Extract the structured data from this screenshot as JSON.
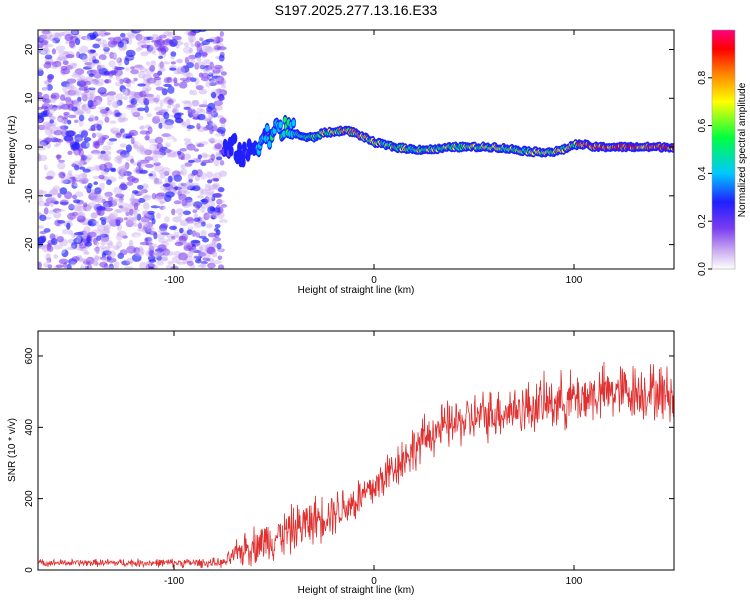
{
  "title": "S197.2025.277.13.16.E33",
  "chart_data": [
    {
      "type": "heatmap",
      "id": "spectrogram",
      "xlabel": "Height of straight line (km)",
      "ylabel": "Frequency (Hz)",
      "xlim": [
        -168,
        150
      ],
      "ylim": [
        -25,
        24
      ],
      "xticks": [
        -100,
        0,
        100
      ],
      "yticks": [
        -20,
        -10,
        0,
        10,
        20
      ],
      "colorbar": {
        "label": "Normalized spectral amplitude",
        "range": [
          0,
          1
        ],
        "ticks": [
          "0.0",
          "0.2",
          "0.4",
          "0.6",
          "0.8"
        ],
        "tick_values": [
          0,
          0.2,
          0.4,
          0.6,
          0.8
        ],
        "colors": [
          "#ffffff",
          "#c8a8f0",
          "#7a3cf0",
          "#2020ff",
          "#00c8ff",
          "#00ff40",
          "#ffff00",
          "#ff8000",
          "#ff0000",
          "#ff0080"
        ]
      },
      "noise_region_x": [
        -168,
        -75
      ],
      "ridge": {
        "x": [
          -75,
          -70,
          -65,
          -60,
          -55,
          -50,
          -45,
          -40,
          -35,
          -30,
          -25,
          -20,
          -15,
          -10,
          -5,
          0,
          5,
          10,
          20,
          30,
          40,
          50,
          60,
          70,
          80,
          90,
          95,
          100,
          105,
          110,
          120,
          130,
          140,
          150
        ],
        "freq": [
          -1,
          0,
          -2,
          0,
          2,
          3,
          4,
          3,
          2,
          2,
          3,
          3,
          3.5,
          3,
          2,
          1,
          0.5,
          0,
          -0.5,
          -0.5,
          0,
          0,
          0,
          -0.5,
          -1,
          -1,
          -0.5,
          0.5,
          0.5,
          0,
          0,
          0,
          0,
          0
        ],
        "amplitude": [
          0.35,
          0.4,
          0.35,
          0.4,
          0.5,
          0.55,
          0.6,
          0.55,
          0.6,
          0.65,
          0.7,
          0.75,
          0.85,
          0.8,
          0.75,
          0.7,
          0.7,
          0.75,
          0.65,
          0.7,
          0.7,
          0.75,
          0.7,
          0.65,
          0.7,
          0.75,
          0.7,
          0.8,
          0.9,
          0.95,
          0.95,
          0.95,
          0.95,
          0.95
        ]
      }
    },
    {
      "type": "line",
      "id": "snr",
      "xlabel": "Height of straight line (km)",
      "ylabel": "SNR (10 * v/v)",
      "xlim": [
        -168,
        150
      ],
      "ylim": [
        0,
        670
      ],
      "xticks": [
        -100,
        0,
        100
      ],
      "yticks": [
        0,
        200,
        400,
        600
      ],
      "color": "#e03030",
      "trend": {
        "x": [
          -168,
          -75,
          -65,
          -50,
          -30,
          -10,
          0,
          10,
          20,
          30,
          40,
          60,
          80,
          100,
          120,
          140,
          150
        ],
        "y": [
          20,
          20,
          60,
          90,
          140,
          190,
          230,
          290,
          340,
          390,
          410,
          440,
          460,
          480,
          500,
          500,
          490
        ]
      },
      "noise_amplitude": {
        "x": [
          -168,
          -75,
          -65,
          -40,
          0,
          40,
          100,
          150
        ],
        "y": [
          8,
          12,
          45,
          60,
          55,
          60,
          70,
          70
        ]
      }
    }
  ]
}
